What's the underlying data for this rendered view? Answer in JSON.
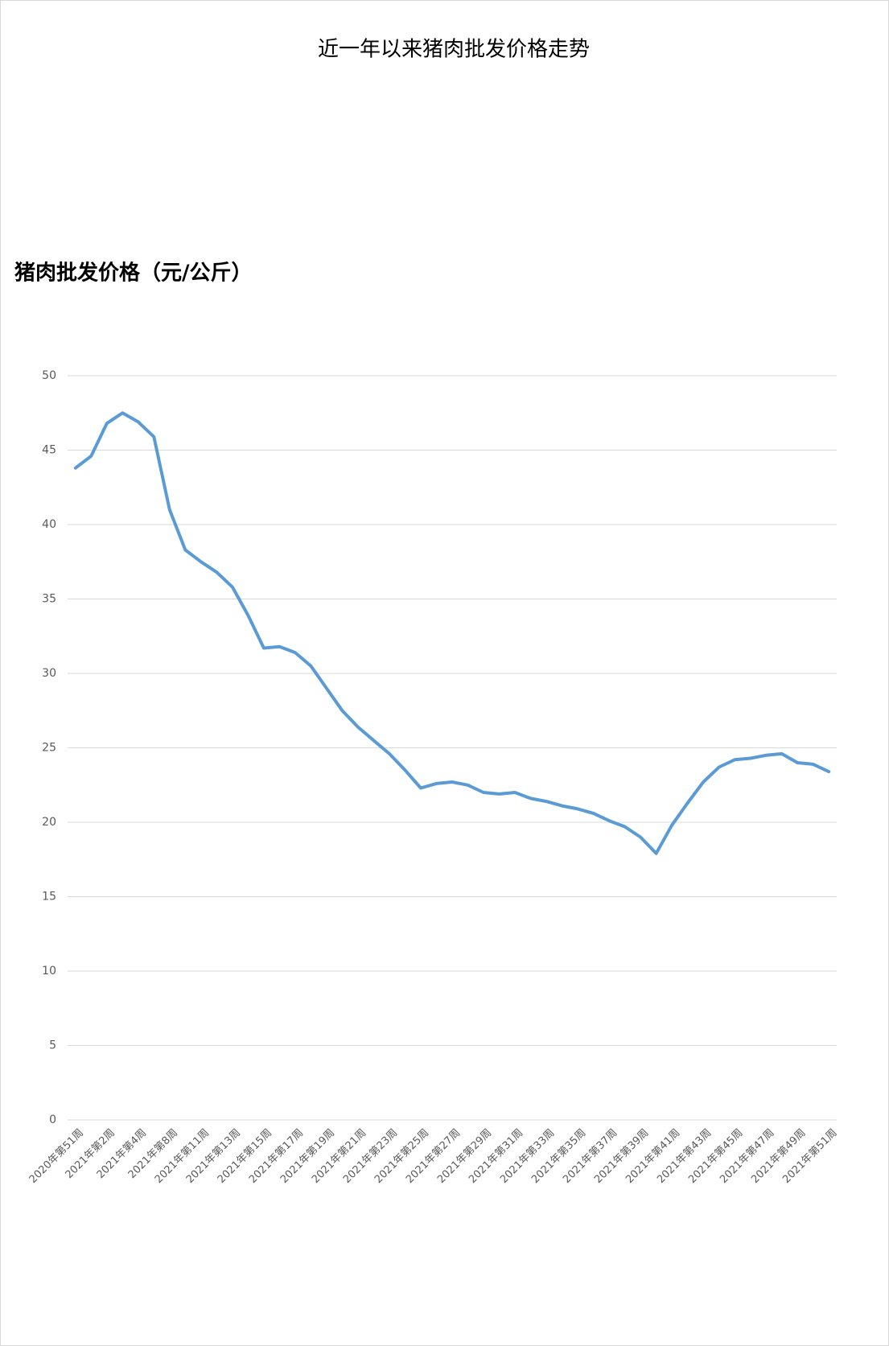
{
  "chart_data": {
    "type": "line",
    "title": "近一年以来猪肉批发价格走势",
    "y_label": "猪肉批发价格（元/公斤）",
    "categories": [
      "2020年第51周",
      null,
      "2021年第2周",
      null,
      "2021年第4周",
      null,
      "2021年第8周",
      null,
      "2021年第11周",
      null,
      "2021年第13周",
      null,
      "2021年第15周",
      null,
      "2021年第17周",
      null,
      "2021年第19周",
      null,
      "2021年第21周",
      null,
      "2021年第23周",
      null,
      "2021年第25周",
      null,
      "2021年第27周",
      null,
      "2021年第29周",
      null,
      "2021年第31周",
      null,
      "2021年第33周",
      null,
      "2021年第35周",
      null,
      "2021年第37周",
      null,
      "2021年第39周",
      null,
      "2021年第41周",
      null,
      "2021年第43周",
      null,
      "2021年第45周",
      null,
      "2021年第47周",
      null,
      "2021年第49周",
      null,
      "2021年第51周"
    ],
    "series": [
      {
        "color": "#5b9bd5",
        "values": [
          43.8,
          44.6,
          46.8,
          47.5,
          46.9,
          45.9,
          41.0,
          38.3,
          37.5,
          36.8,
          35.8,
          33.9,
          31.7,
          31.8,
          31.4,
          30.5,
          29.0,
          27.5,
          26.4,
          25.5,
          24.6,
          23.5,
          22.3,
          22.6,
          22.7,
          22.5,
          22.0,
          21.9,
          22.0,
          21.6,
          21.4,
          21.1,
          20.9,
          20.6,
          20.1,
          19.7,
          19.0,
          17.9,
          19.8,
          21.3,
          22.7,
          23.7,
          24.2,
          24.3,
          24.5,
          24.6,
          24.0,
          23.9,
          23.4
        ]
      }
    ],
    "ylim": [
      0,
      50
    ],
    "yticks": [
      0,
      5,
      10,
      15,
      20,
      25,
      30,
      35,
      40,
      45,
      50
    ],
    "grid": true
  }
}
